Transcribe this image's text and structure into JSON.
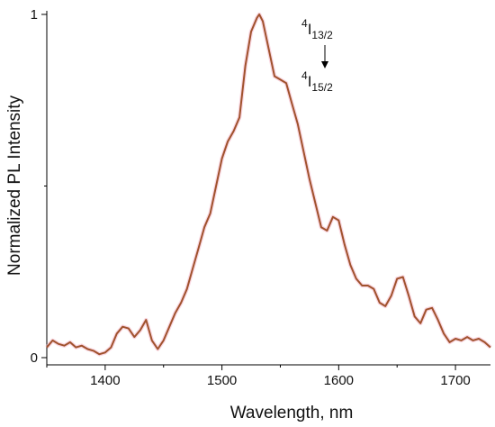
{
  "chart_data": {
    "type": "line",
    "title": "",
    "xlabel": "Wavelength, nm",
    "ylabel": "Normalized PL Intensity",
    "xlim": [
      1350,
      1730
    ],
    "ylim": [
      0,
      1
    ],
    "x_ticks": [
      "1400",
      "1500",
      "1600",
      "1700"
    ],
    "x_tick_values": [
      1400,
      1500,
      1600,
      1700
    ],
    "y_ticks": [
      "0",
      "1"
    ],
    "y_tick_values": [
      0,
      1
    ],
    "grid": false,
    "annotations": {
      "upper_level": {
        "sup": "4",
        "main": "I",
        "sub": "13/2"
      },
      "lower_level": {
        "sup": "4",
        "main": "I",
        "sub": "15/2"
      }
    },
    "series": [
      {
        "color": "#a0522d",
        "x": [
          1350,
          1355,
          1360,
          1365,
          1370,
          1375,
          1380,
          1385,
          1390,
          1395,
          1400,
          1405,
          1410,
          1415,
          1420,
          1425,
          1430,
          1435,
          1440,
          1445,
          1450,
          1455,
          1460,
          1465,
          1470,
          1475,
          1480,
          1485,
          1490,
          1495,
          1500,
          1505,
          1510,
          1515,
          1520,
          1525,
          1530,
          1532,
          1535,
          1540,
          1545,
          1550,
          1555,
          1560,
          1565,
          1570,
          1575,
          1580,
          1585,
          1590,
          1595,
          1600,
          1605,
          1610,
          1615,
          1620,
          1625,
          1630,
          1635,
          1640,
          1645,
          1650,
          1655,
          1660,
          1665,
          1670,
          1675,
          1680,
          1685,
          1690,
          1695,
          1700,
          1705,
          1710,
          1715,
          1720,
          1725,
          1730
        ],
        "y": [
          0.03,
          0.05,
          0.04,
          0.035,
          0.045,
          0.03,
          0.035,
          0.025,
          0.02,
          0.01,
          0.015,
          0.03,
          0.07,
          0.09,
          0.085,
          0.06,
          0.08,
          0.11,
          0.05,
          0.025,
          0.05,
          0.09,
          0.13,
          0.16,
          0.2,
          0.26,
          0.32,
          0.38,
          0.42,
          0.5,
          0.58,
          0.63,
          0.66,
          0.7,
          0.85,
          0.95,
          0.99,
          1.0,
          0.98,
          0.9,
          0.82,
          0.81,
          0.8,
          0.74,
          0.68,
          0.6,
          0.52,
          0.45,
          0.38,
          0.37,
          0.41,
          0.4,
          0.33,
          0.27,
          0.23,
          0.21,
          0.21,
          0.2,
          0.16,
          0.15,
          0.18,
          0.23,
          0.235,
          0.18,
          0.12,
          0.1,
          0.14,
          0.145,
          0.11,
          0.07,
          0.045,
          0.055,
          0.05,
          0.06,
          0.05,
          0.055,
          0.045,
          0.03
        ]
      }
    ]
  }
}
